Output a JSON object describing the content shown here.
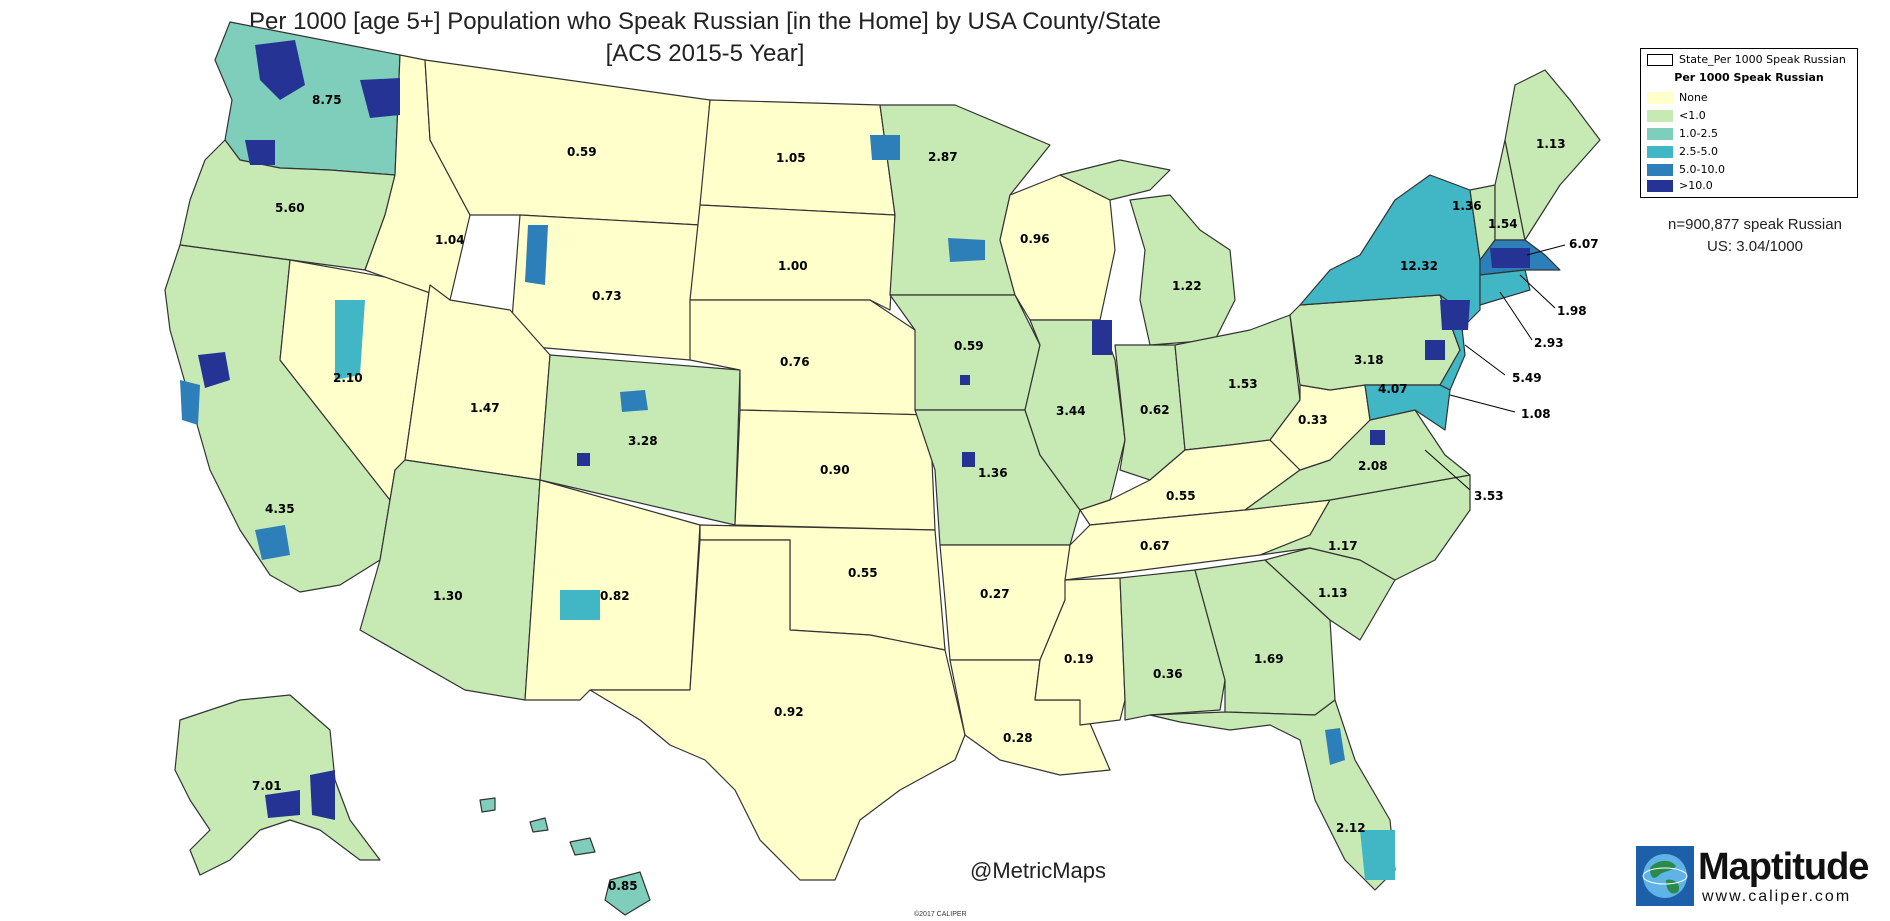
{
  "title": {
    "line1": "Per 1000 [age 5+] Population who Speak Russian [in the Home] by USA County/State",
    "line2": "[ACS 2015-5 Year]"
  },
  "legend": {
    "outline_label": "State_Per 1000 Speak Russian",
    "heading": "Per 1000 Speak Russian",
    "classes": [
      {
        "label": "None",
        "color": "#ffffcc"
      },
      {
        "label": "<1.0",
        "color": "#c7e9b4"
      },
      {
        "label": "1.0-2.5",
        "color": "#7fcdbb"
      },
      {
        "label": "2.5-5.0",
        "color": "#41b6c4"
      },
      {
        "label": "5.0-10.0",
        "color": "#2c7fb8"
      },
      {
        "label": ">10.0",
        "color": "#253494"
      }
    ]
  },
  "summary": {
    "count": "n=900,877 speak Russian",
    "us_rate": "US: 3.04/1000"
  },
  "state_values": {
    "WA": "8.75",
    "OR": "5.60",
    "CA": "4.35",
    "NV": "2.10",
    "ID": "1.04",
    "MT": "0.59",
    "WY": "0.73",
    "UT": "1.47",
    "CO": "3.28",
    "AZ": "1.30",
    "NM": "0.82",
    "ND": "1.05",
    "SD": "1.00",
    "NE": "0.76",
    "KS": "0.90",
    "OK": "0.55",
    "TX": "0.92",
    "MN": "2.87",
    "IA": "0.59",
    "MO": "1.36",
    "AR": "0.27",
    "LA": "0.28",
    "WI": "0.96",
    "IL": "3.44",
    "MI": "1.22",
    "IN": "0.62",
    "OH": "1.53",
    "KY": "0.55",
    "TN": "0.67",
    "MS": "0.19",
    "AL": "0.36",
    "GA": "1.69",
    "FL": "2.12",
    "SC": "1.13",
    "NC": "1.17",
    "VA": "2.08",
    "WV": "0.33",
    "PA": "3.18",
    "NY": "12.32",
    "VT": "1.36",
    "NH": "1.54",
    "ME": "1.13",
    "MA": "6.07",
    "RI": "1.98",
    "CT": "2.93",
    "NJ": "5.49",
    "DE": "1.08",
    "MD": "4.07",
    "DC": "3.53",
    "AK": "7.01",
    "HI": "0.85"
  },
  "watermark": "@MetricMaps",
  "copyright": "©2017 CALIPER",
  "logo": {
    "brand": "Maptitude",
    "url": "www.caliper.com",
    "globe_icon": "globe-icon"
  }
}
